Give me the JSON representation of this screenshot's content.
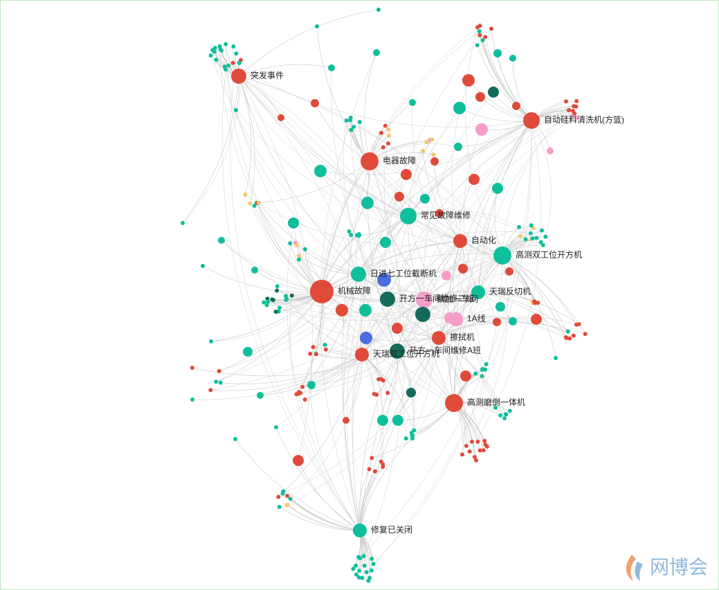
{
  "nodes": [
    {
      "label": "突发事件"
    },
    {
      "label": "电器故障"
    },
    {
      "label": "自动硅料清洗机(方篮)"
    },
    {
      "label": "常见故障维修"
    },
    {
      "label": "自动化"
    },
    {
      "label": "高测双工位开方机"
    },
    {
      "label": "日进七工位截断机"
    },
    {
      "label": "机械故障"
    },
    {
      "label": "天瑞反切机"
    },
    {
      "label": "开方一车间维修二班"
    },
    {
      "label": "精加一车间"
    },
    {
      "label": "1A线"
    },
    {
      "label": "擦拭机"
    },
    {
      "label": "天瑞双工位开方机"
    },
    {
      "label": "开方一车间维修A班"
    },
    {
      "label": "高测磨倒一体机"
    },
    {
      "label": "修复已关闭"
    }
  ],
  "watermark": "网博会"
}
